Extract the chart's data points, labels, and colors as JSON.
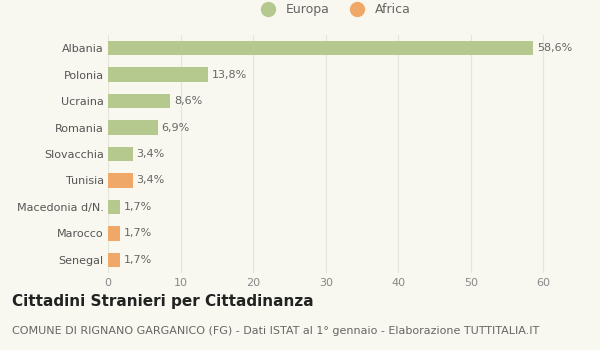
{
  "categories": [
    "Albania",
    "Polonia",
    "Ucraina",
    "Romania",
    "Slovacchia",
    "Tunisia",
    "Macedonia d/N.",
    "Marocco",
    "Senegal"
  ],
  "values": [
    58.6,
    13.8,
    8.6,
    6.9,
    3.4,
    3.4,
    1.7,
    1.7,
    1.7
  ],
  "labels": [
    "58,6%",
    "13,8%",
    "8,6%",
    "6,9%",
    "3,4%",
    "3,4%",
    "1,7%",
    "1,7%",
    "1,7%"
  ],
  "bar_colors": [
    "#b5c98e",
    "#b5c98e",
    "#b5c98e",
    "#b5c98e",
    "#b5c98e",
    "#f0a868",
    "#b5c98e",
    "#f0a868",
    "#f0a868"
  ],
  "legend_labels": [
    "Europa",
    "Africa"
  ],
  "legend_colors": [
    "#b5c98e",
    "#f0a868"
  ],
  "title": "Cittadini Stranieri per Cittadinanza",
  "subtitle": "COMUNE DI RIGNANO GARGANICO (FG) - Dati ISTAT al 1° gennaio - Elaborazione TUTTITALIA.IT",
  "xlim": [
    0,
    62
  ],
  "xticks": [
    0,
    10,
    20,
    30,
    40,
    50,
    60
  ],
  "background_color": "#f8f8f0",
  "grid_color": "#e5e5d8",
  "title_fontsize": 11,
  "subtitle_fontsize": 8,
  "label_fontsize": 8,
  "tick_fontsize": 8,
  "ytick_fontsize": 8
}
